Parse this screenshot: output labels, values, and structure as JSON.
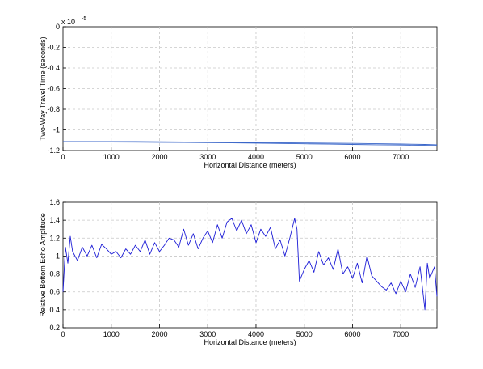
{
  "chart_data": [
    {
      "type": "line",
      "title": "",
      "xlabel": "Horizontal Distance (meters)",
      "ylabel": "Two-Way Travel Time (seconds)",
      "y_multiplier": "x 10",
      "y_exponent": "-5",
      "xlim": [
        0,
        7750
      ],
      "ylim": [
        -1.2,
        0
      ],
      "xticks": [
        "0",
        "1000",
        "2000",
        "3000",
        "4000",
        "5000",
        "6000",
        "7000"
      ],
      "yticks": [
        "0",
        "-0.2",
        "-0.4",
        "-0.6",
        "-0.8",
        "-1",
        "-1.2"
      ],
      "grid": true,
      "color": "#3a66c9",
      "series": [
        {
          "x": [
            0,
            500,
            1000,
            1500,
            2000,
            2500,
            3000,
            3500,
            4000,
            4500,
            5000,
            5500,
            6000,
            6500,
            7000,
            7500,
            7750
          ],
          "y": [
            -1.113,
            -1.113,
            -1.113,
            -1.114,
            -1.115,
            -1.117,
            -1.119,
            -1.121,
            -1.123,
            -1.125,
            -1.127,
            -1.129,
            -1.131,
            -1.134,
            -1.137,
            -1.141,
            -1.144
          ]
        },
        {
          "x": [
            0,
            500,
            1000,
            1500,
            2000,
            2500,
            3000,
            3500,
            4000,
            4500,
            5000,
            5500,
            6000,
            6500,
            7000,
            7500,
            7750
          ],
          "y": [
            -1.118,
            -1.118,
            -1.118,
            -1.119,
            -1.121,
            -1.122,
            -1.124,
            -1.126,
            -1.129,
            -1.132,
            -1.135,
            -1.138,
            -1.141,
            -1.144,
            -1.147,
            -1.15,
            -1.152
          ]
        }
      ]
    },
    {
      "type": "line",
      "title": "",
      "xlabel": "Horizontal Distance (meters)",
      "ylabel": "Relative Bottom Echo Amplitude",
      "xlim": [
        0,
        7750
      ],
      "ylim": [
        0.2,
        1.6
      ],
      "xticks": [
        "0",
        "1000",
        "2000",
        "3000",
        "4000",
        "5000",
        "6000",
        "7000"
      ],
      "yticks": [
        "0.2",
        "0.4",
        "0.6",
        "0.8",
        "1",
        "1.2",
        "1.4",
        "1.6"
      ],
      "grid": true,
      "color": "#1c1cd6",
      "series": [
        {
          "x": [
            0,
            50,
            100,
            150,
            200,
            300,
            400,
            500,
            600,
            700,
            800,
            900,
            1000,
            1100,
            1200,
            1300,
            1400,
            1500,
            1600,
            1700,
            1800,
            1900,
            2000,
            2100,
            2200,
            2300,
            2400,
            2500,
            2600,
            2700,
            2800,
            2900,
            3000,
            3100,
            3200,
            3300,
            3400,
            3500,
            3600,
            3700,
            3800,
            3900,
            4000,
            4100,
            4200,
            4300,
            4400,
            4500,
            4600,
            4700,
            4800,
            4850,
            4900,
            5000,
            5100,
            5200,
            5300,
            5400,
            5500,
            5600,
            5700,
            5800,
            5900,
            6000,
            6100,
            6200,
            6300,
            6400,
            6500,
            6600,
            6700,
            6800,
            6900,
            7000,
            7100,
            7200,
            7300,
            7400,
            7500,
            7550,
            7600,
            7700,
            7750
          ],
          "y": [
            0.6,
            1.1,
            0.92,
            1.22,
            1.05,
            0.95,
            1.1,
            1.0,
            1.12,
            0.98,
            1.13,
            1.08,
            1.02,
            1.05,
            0.98,
            1.08,
            1.02,
            1.12,
            1.05,
            1.18,
            1.02,
            1.15,
            1.05,
            1.12,
            1.2,
            1.18,
            1.1,
            1.3,
            1.12,
            1.25,
            1.08,
            1.2,
            1.28,
            1.15,
            1.35,
            1.2,
            1.38,
            1.42,
            1.28,
            1.4,
            1.25,
            1.35,
            1.15,
            1.3,
            1.22,
            1.32,
            1.08,
            1.18,
            1.0,
            1.2,
            1.42,
            1.3,
            0.72,
            0.85,
            0.95,
            0.82,
            1.05,
            0.9,
            0.98,
            0.85,
            1.08,
            0.8,
            0.88,
            0.75,
            0.92,
            0.7,
            1.0,
            0.78,
            0.72,
            0.66,
            0.62,
            0.7,
            0.58,
            0.72,
            0.6,
            0.8,
            0.65,
            0.88,
            0.4,
            0.92,
            0.75,
            0.88,
            0.55
          ]
        }
      ]
    }
  ]
}
